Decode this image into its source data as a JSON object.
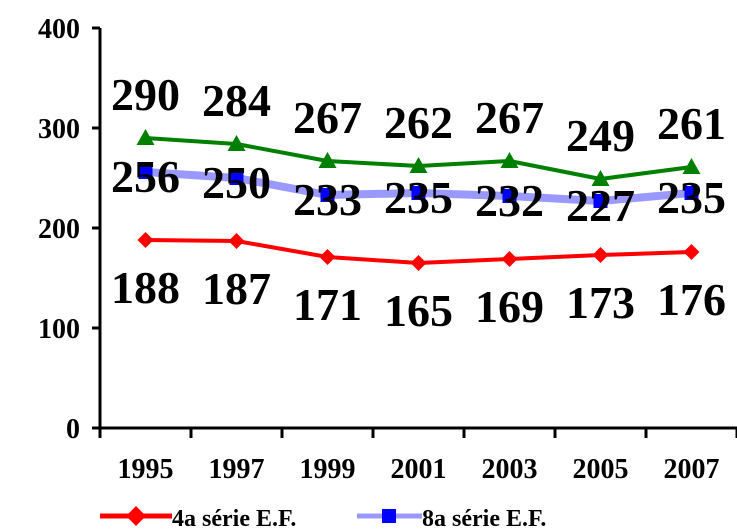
{
  "chart_data": {
    "type": "line",
    "title": "",
    "xlabel": "",
    "ylabel": "",
    "categories": [
      "1995",
      "1997",
      "1999",
      "2001",
      "2003",
      "2005",
      "2007"
    ],
    "ylim": [
      0,
      400
    ],
    "yticks": [
      0,
      100,
      200,
      300,
      400
    ],
    "grid": false,
    "legend_position": "bottom",
    "series": [
      {
        "name": "4a série E.F.",
        "color": "#ff0000",
        "marker": "diamond",
        "values": [
          188,
          187,
          171,
          165,
          169,
          173,
          176
        ]
      },
      {
        "name": "8a série E.F.",
        "color": "#9999ff",
        "marker_color": "#0000ff",
        "marker": "square",
        "values": [
          256,
          250,
          233,
          235,
          232,
          227,
          235
        ]
      },
      {
        "name": "",
        "color": "#008000",
        "marker": "triangle",
        "values": [
          290,
          284,
          267,
          262,
          267,
          249,
          261
        ]
      }
    ],
    "labels": {
      "s0": [
        "188",
        "187",
        "171",
        "165",
        "169",
        "173",
        "176"
      ],
      "s1": [
        "256",
        "250",
        "233",
        "235",
        "232",
        "227",
        "235"
      ],
      "s2": [
        "290",
        "284",
        "267",
        "262",
        "267",
        "249",
        "261"
      ]
    }
  }
}
